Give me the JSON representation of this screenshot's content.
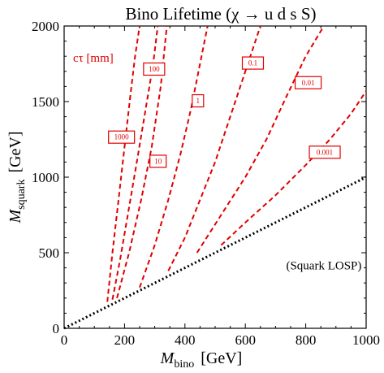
{
  "chart_data": {
    "type": "line",
    "title": "Bino Lifetime (χ → u d s S)",
    "xlabel": "M",
    "xlabel_sub": "bino",
    "xlabel_unit": "[GeV]",
    "ylabel": "M",
    "ylabel_sub": "squark",
    "ylabel_unit": "[GeV]",
    "xlim": [
      0,
      1000
    ],
    "ylim": [
      0,
      2000
    ],
    "xticks": [
      0,
      200,
      400,
      600,
      800,
      1000
    ],
    "yticks": [
      0,
      500,
      1000,
      1500,
      2000
    ],
    "legend_title": "cτ [mm]",
    "series": [
      {
        "name": "1000",
        "color": "#e00000",
        "style": "dashed",
        "x": [
          143,
          160,
          180,
          200,
          220,
          235,
          250
        ],
        "y": [
          175,
          500,
          850,
          1200,
          1550,
          1800,
          2000
        ]
      },
      {
        "name": "100",
        "color": "#e00000",
        "style": "dashed",
        "x": [
          160,
          185,
          215,
          245,
          270,
          295,
          310
        ],
        "y": [
          190,
          450,
          800,
          1150,
          1450,
          1750,
          2000
        ]
      },
      {
        "name": "10",
        "color": "#e00000",
        "style": "dashed",
        "x": [
          175,
          215,
          255,
          290,
          320,
          340
        ],
        "y": [
          200,
          500,
          850,
          1200,
          1600,
          2000
        ]
      },
      {
        "name": "1",
        "color": "#e00000",
        "style": "dashed",
        "x": [
          250,
          300,
          345,
          385,
          420,
          450,
          475
        ],
        "y": [
          270,
          550,
          850,
          1150,
          1450,
          1750,
          2000
        ]
      },
      {
        "name": "0.1",
        "color": "#e00000",
        "style": "dashed",
        "x": [
          345,
          400,
          450,
          500,
          550,
          600,
          650
        ],
        "y": [
          380,
          600,
          850,
          1100,
          1400,
          1700,
          2000
        ]
      },
      {
        "name": "0.01",
        "color": "#e00000",
        "style": "dashed",
        "x": [
          440,
          520,
          600,
          670,
          740,
          800,
          860
        ],
        "y": [
          500,
          750,
          1000,
          1250,
          1550,
          1800,
          2000
        ]
      },
      {
        "name": "0.001",
        "color": "#e00000",
        "style": "dashed",
        "x": [
          520,
          600,
          700,
          800,
          880,
          950,
          1000
        ],
        "y": [
          550,
          700,
          880,
          1080,
          1250,
          1420,
          1570
        ]
      },
      {
        "name": "Squark LOSP",
        "color": "#000000",
        "style": "dotted",
        "x": [
          0,
          1000
        ],
        "y": [
          0,
          1000
        ]
      }
    ],
    "contour_labels": [
      {
        "text": "1000",
        "x": 190,
        "y": 1265
      },
      {
        "text": "100",
        "x": 298,
        "y": 1715
      },
      {
        "text": "10",
        "x": 311,
        "y": 1105
      },
      {
        "text": "1",
        "x": 443,
        "y": 1505
      },
      {
        "text": "0.1",
        "x": 625,
        "y": 1755
      },
      {
        "text": "0.01",
        "x": 808,
        "y": 1625
      },
      {
        "text": "0.001",
        "x": 863,
        "y": 1165
      }
    ],
    "region_label": "(Squark LOSP)",
    "region_label_pos": {
      "x": 860,
      "y": 390
    },
    "grid": false,
    "frame": "box"
  }
}
